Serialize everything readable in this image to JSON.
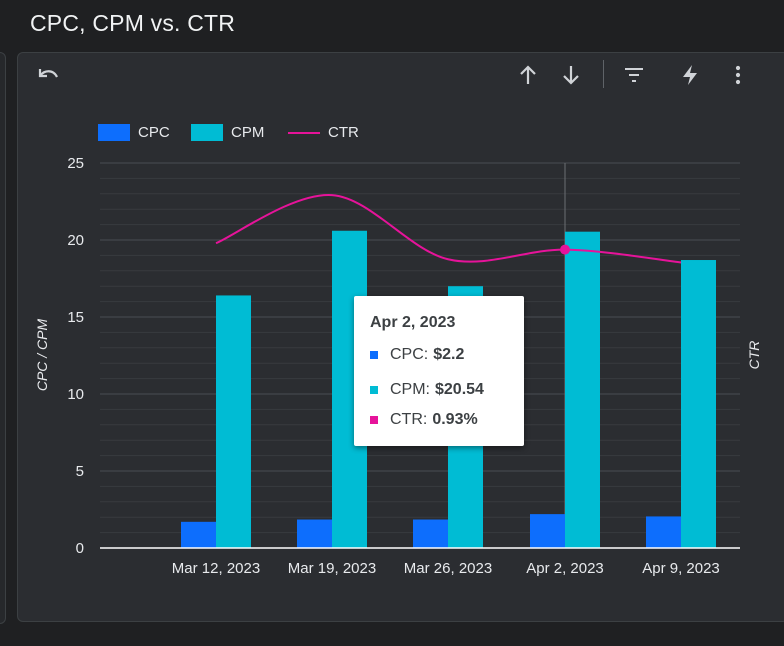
{
  "page": {
    "title": "CPC, CPM vs. CTR"
  },
  "toolbar": {
    "undo_icon": "undo-icon",
    "sort_asc_icon": "arrow-up-icon",
    "sort_desc_icon": "arrow-down-icon",
    "filter_icon": "filter-icon",
    "insights_icon": "lightning-icon",
    "more_icon": "more-vertical-icon"
  },
  "colors": {
    "cpc": "#0d6efd",
    "cpm": "#00bcd4",
    "ctr": "#e6139a"
  },
  "chart_data": {
    "type": "bar",
    "title": "CPC, CPM vs. CTR",
    "categories": [
      "Mar 12, 2023",
      "Mar 19, 2023",
      "Mar 26, 2023",
      "Apr 2, 2023",
      "Apr 9, 2023"
    ],
    "series": [
      {
        "name": "CPC",
        "type": "bar",
        "axis": "left",
        "values": [
          1.7,
          1.85,
          1.85,
          2.2,
          2.05
        ]
      },
      {
        "name": "CPM",
        "type": "bar",
        "axis": "left",
        "values": [
          16.4,
          20.6,
          17.0,
          20.54,
          18.7
        ]
      },
      {
        "name": "CTR",
        "type": "line",
        "axis": "right",
        "unit": "%",
        "values": [
          0.95,
          1.1,
          0.9,
          0.93,
          0.89
        ]
      }
    ],
    "ylabel": "CPC / CPM",
    "y2label": "CTR",
    "ylim": [
      0,
      25
    ],
    "y2lim": [
      0,
      1.2
    ],
    "yticks": [
      "0",
      "5",
      "10",
      "15",
      "20",
      "25"
    ],
    "grid": true,
    "legend": "top-left",
    "legend_labels": [
      "CPC",
      "CPM",
      "CTR"
    ],
    "highlight_index": 3
  },
  "tooltip": {
    "date": "Apr 2, 2023",
    "rows": [
      {
        "label": "CPC: ",
        "value": "$2.2"
      },
      {
        "label": "CPM: ",
        "value": "$20.54"
      },
      {
        "label": "CTR: ",
        "value": "0.93%"
      }
    ]
  }
}
